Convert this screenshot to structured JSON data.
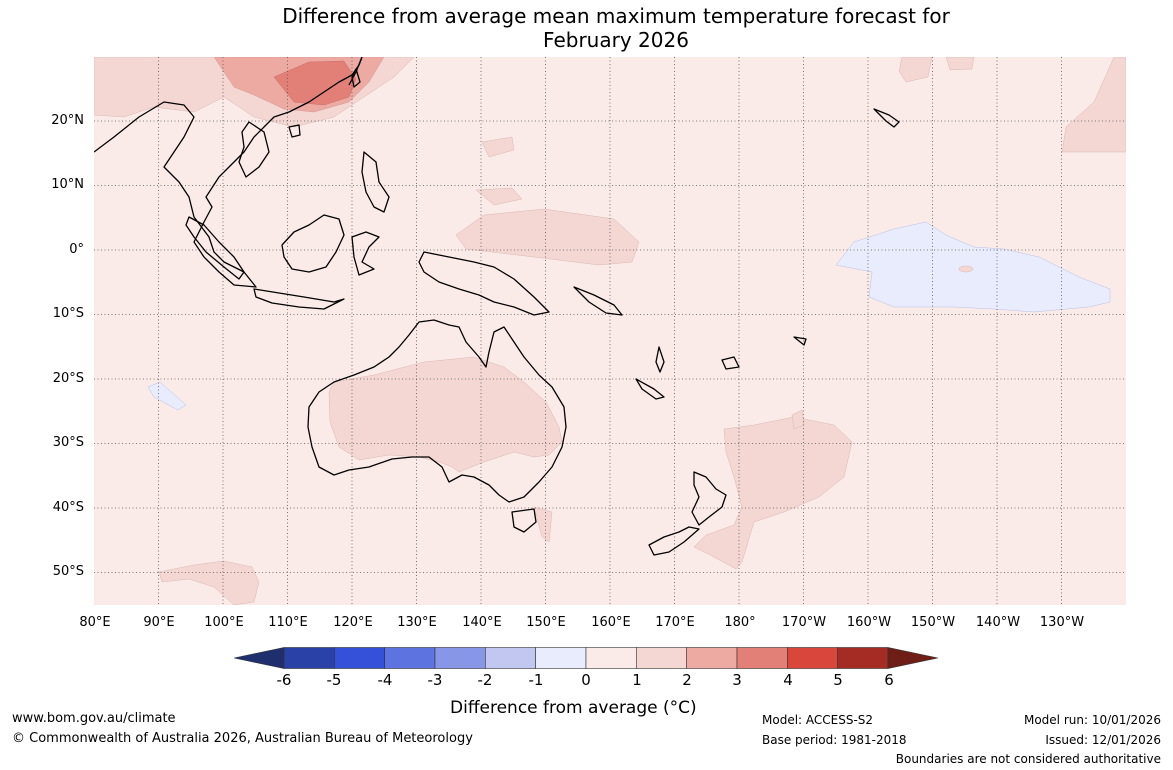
{
  "title": {
    "line1": "Difference from average mean maximum temperature forecast for",
    "line2": "February 2026"
  },
  "map": {
    "lat_labels": [
      "20°N",
      "10°N",
      "0°",
      "10°S",
      "20°S",
      "30°S",
      "40°S",
      "50°S"
    ],
    "lon_labels": [
      "80°E",
      "90°E",
      "100°E",
      "110°E",
      "120°E",
      "130°E",
      "140°E",
      "150°E",
      "160°E",
      "170°E",
      "180°",
      "170°W",
      "160°W",
      "150°W",
      "140°W",
      "130°W"
    ],
    "lat_range": [
      -55,
      30
    ],
    "lon_range_east": [
      80,
      240
    ],
    "background_color": "#fbebe8",
    "anomaly_regions": [
      {
        "name": "southeast-china",
        "anomaly_range": "2 to 4",
        "color": "#e8857a"
      },
      {
        "name": "australia-interior",
        "anomaly_range": "1 to 2",
        "color": "#f4d6d3"
      },
      {
        "name": "equatorial-central-pacific",
        "anomaly_range": "-1 to 0",
        "color": "#e8ecfc"
      },
      {
        "name": "tasman-sea-east-of-nz",
        "anomaly_range": "1 to 2",
        "color": "#f4d6d3"
      },
      {
        "name": "western-pacific-north-of-equator",
        "anomaly_range": "1 to 2",
        "color": "#f4d6d3"
      }
    ]
  },
  "colorbar": {
    "tick_labels": [
      "-6",
      "-5",
      "-4",
      "-3",
      "-2",
      "-1",
      "0",
      "1",
      "2",
      "3",
      "4",
      "5",
      "6"
    ],
    "colors": [
      "#1f2f6e",
      "#2a41a8",
      "#3551d9",
      "#5c73e0",
      "#8796e6",
      "#c1c7f1",
      "#e8ecfc",
      "#fbebe8",
      "#f4d6d3",
      "#ecaaa3",
      "#e28077",
      "#d8463c",
      "#a52b25",
      "#6e1d17"
    ],
    "title": "Difference from average (°C)"
  },
  "footer": {
    "website": "www.bom.gov.au/climate",
    "copyright": "© Commonwealth of Australia 2026, Australian Bureau of Meteorology",
    "model": "Model: ACCESS-S2",
    "base_period": "Base period: 1981-2018",
    "model_run": "Model run: 10/01/2026",
    "issued": "Issued: 12/01/2026",
    "disclaimer": "Boundaries are not considered authoritative"
  }
}
